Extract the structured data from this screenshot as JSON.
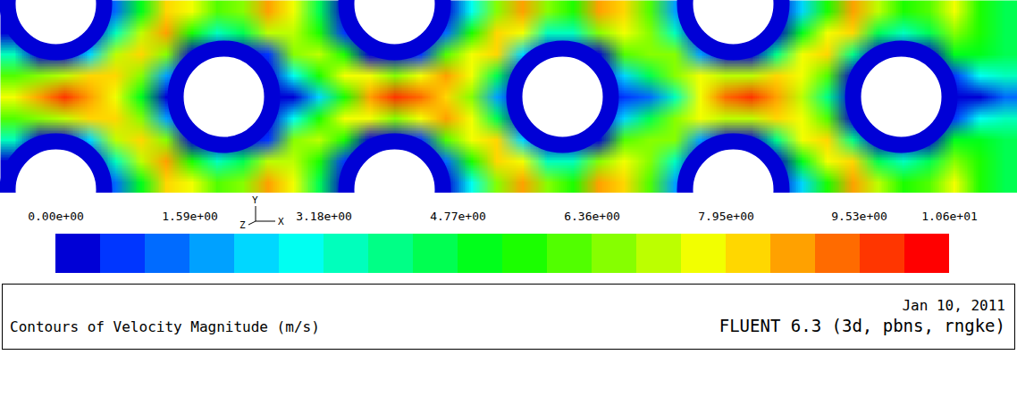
{
  "chart_data": {
    "type": "contour",
    "title": "Contours of Velocity Magnitude (m/s)",
    "annotations": [
      "Jan 10, 2011",
      "FLUENT 6.3 (3d, pbns, rngke)"
    ],
    "triad_labels": {
      "y": "Y",
      "z": "Z",
      "x": "X"
    },
    "tick_labels": false,
    "cells": [
      [
        0,
        0,
        0,
        0,
        1.5,
        5,
        8,
        7.8,
        6,
        6.5,
        8.8,
        7.5,
        4.5,
        0,
        0,
        0,
        0,
        0,
        3,
        6.5,
        8.8,
        6.5,
        5.5,
        8.5,
        8.3,
        6,
        2,
        0,
        0,
        0,
        0,
        2.5,
        5.5,
        8.5,
        7,
        5.5,
        6,
        7.5,
        5.5,
        4.5
      ],
      [
        0,
        0,
        0,
        0,
        3.5,
        7,
        8.5,
        5.5,
        3.5,
        4.5,
        7,
        7.2,
        5.8,
        1,
        0,
        0,
        0,
        1.5,
        5.5,
        8,
        7.5,
        3.5,
        3.5,
        6.5,
        7.5,
        6.8,
        3.5,
        0,
        0,
        0,
        0,
        5,
        7.5,
        8,
        4.5,
        3.5,
        4.5,
        6.5,
        5.5,
        4.5
      ],
      [
        3.5,
        0,
        0,
        2.5,
        7,
        8.2,
        6.5,
        0,
        0,
        0,
        1,
        6.5,
        7,
        5.5,
        0,
        0,
        1,
        6,
        7.8,
        8,
        2.5,
        0,
        0,
        0.5,
        6,
        6.8,
        6.5,
        2,
        0,
        0,
        4,
        7.5,
        8.3,
        4,
        0,
        0,
        0,
        5,
        5,
        4.5
      ],
      [
        6,
        6.5,
        7,
        8,
        8.2,
        6.5,
        2,
        0,
        0,
        0,
        0,
        3,
        5.5,
        7.5,
        7.5,
        6.5,
        7.5,
        8.5,
        7.5,
        4.5,
        0,
        0,
        0,
        0,
        2.5,
        4.5,
        6.5,
        7.5,
        7,
        7,
        8.3,
        7.8,
        6,
        0.5,
        0,
        0,
        0,
        1,
        3,
        3.5
      ],
      [
        7.5,
        9,
        9.6,
        9,
        7.5,
        5,
        0,
        0,
        0,
        0,
        0,
        0.5,
        2.5,
        5.5,
        8.8,
        9.6,
        9.5,
        8.3,
        6.5,
        2,
        0,
        0,
        0,
        0,
        0.8,
        1.5,
        3.5,
        7.8,
        9.4,
        9.6,
        8.8,
        7,
        4,
        0,
        0,
        0,
        0,
        0,
        0.3,
        1.5
      ],
      [
        6,
        6.5,
        7,
        8,
        8.2,
        6.5,
        2,
        0,
        0,
        0,
        0,
        3,
        5.5,
        7.5,
        7.5,
        6.5,
        7.5,
        8.5,
        7.5,
        4.5,
        0,
        0,
        0,
        0,
        2.5,
        4.5,
        6.5,
        7.5,
        7,
        7,
        8.3,
        7.8,
        6,
        0.5,
        0,
        0,
        0,
        1,
        3,
        3.5
      ],
      [
        3.5,
        0,
        0,
        2.5,
        7,
        8.2,
        6.5,
        0,
        0,
        0,
        1,
        6.5,
        7,
        5.5,
        0,
        0,
        1,
        6,
        7.8,
        8,
        2.5,
        0,
        0,
        0.5,
        6,
        6.8,
        6.5,
        2,
        0,
        0,
        4,
        7.5,
        8.3,
        4,
        0,
        0,
        0,
        5,
        5,
        4.5
      ],
      [
        0,
        0,
        0,
        0,
        3.5,
        7,
        8.5,
        5.5,
        3.5,
        4.5,
        7,
        7.2,
        5.8,
        1,
        0,
        0,
        0,
        1.5,
        5.5,
        8,
        7.5,
        3.5,
        3.5,
        6.5,
        7.5,
        6.8,
        3.5,
        0,
        0,
        0,
        0,
        5,
        7.5,
        8,
        4.5,
        3.5,
        4.5,
        6.5,
        5.5,
        4.5
      ],
      [
        0,
        0,
        0,
        0,
        1.5,
        5,
        8,
        7.8,
        6,
        6.5,
        8.8,
        7.5,
        4.5,
        0,
        0,
        0,
        0,
        0,
        3,
        6.5,
        8.8,
        6.5,
        5.5,
        8.5,
        8.3,
        6,
        2,
        0,
        0,
        0,
        0,
        2.5,
        5.5,
        8.5,
        7,
        5.5,
        6,
        7.5,
        5.5,
        4.5
      ]
    ],
    "colorbar": {
      "range": [
        0,
        10.6
      ],
      "levels": 20,
      "ticks": [
        {
          "value": 0,
          "label": "0.00e+00"
        },
        {
          "value": 1.59,
          "label": "1.59e+00"
        },
        {
          "value": 3.18,
          "label": "3.18e+00"
        },
        {
          "value": 4.77,
          "label": "4.77e+00"
        },
        {
          "value": 6.36,
          "label": "6.36e+00"
        },
        {
          "value": 7.95,
          "label": "7.95e+00"
        },
        {
          "value": 9.53,
          "label": "9.53e+00"
        },
        {
          "value": 10.6,
          "label": "1.06e+01"
        }
      ]
    }
  }
}
